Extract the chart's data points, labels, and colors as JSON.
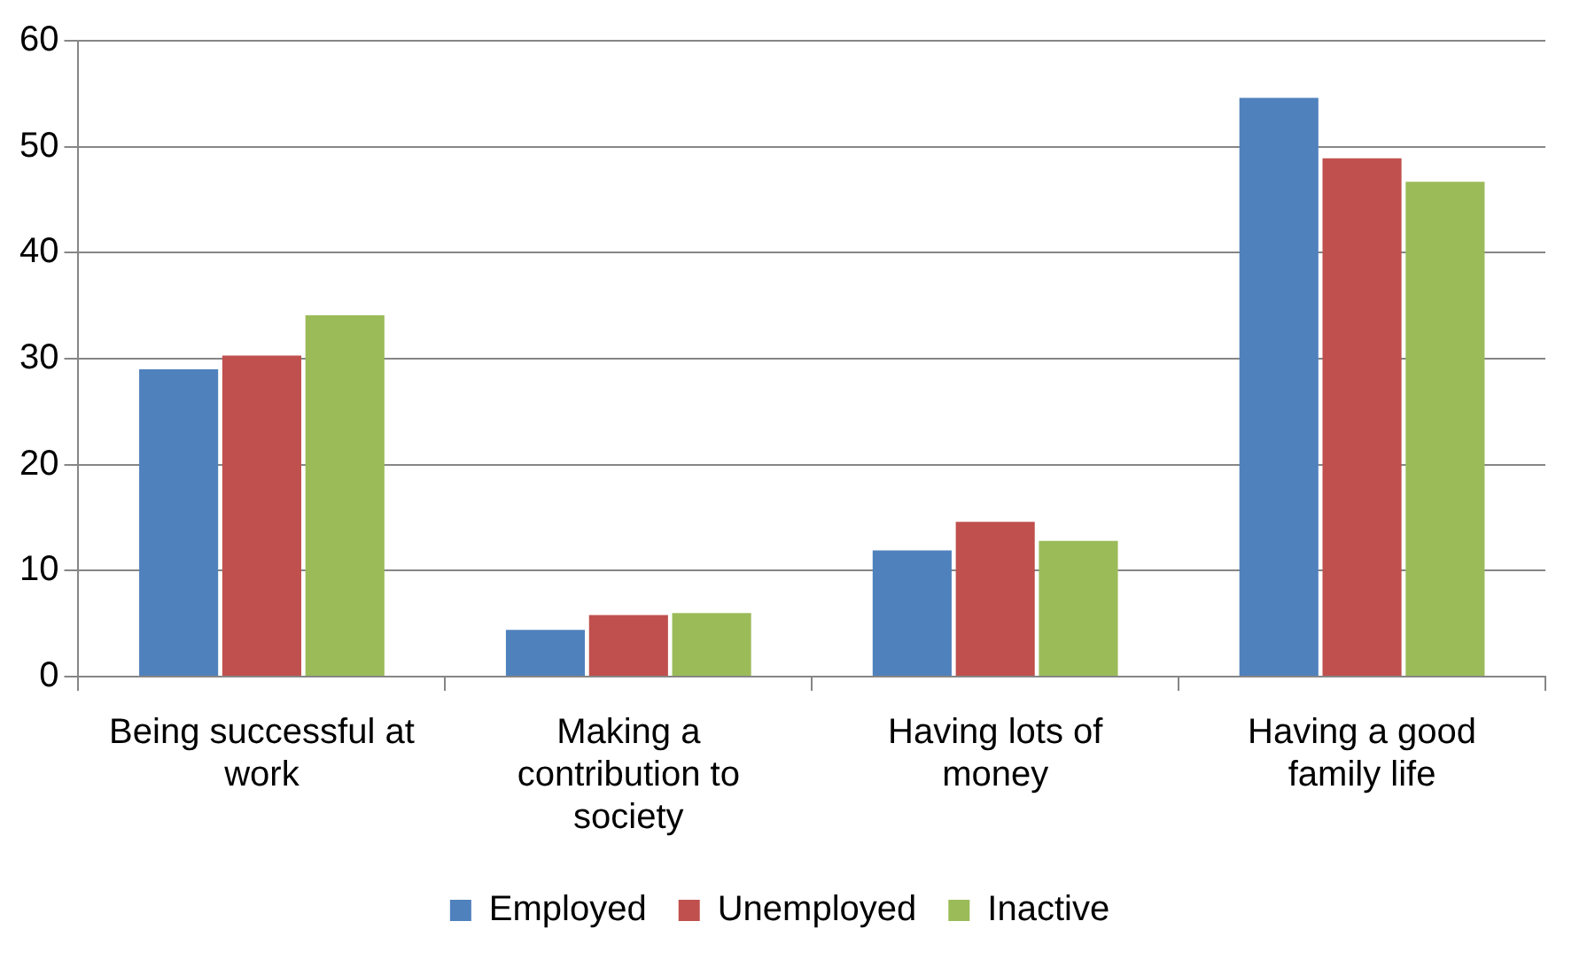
{
  "chart_data": {
    "type": "bar",
    "categories": [
      "Being successful at work",
      "Making a contribution to society",
      "Having lots of money",
      "Having a good family life"
    ],
    "series": [
      {
        "name": "Employed",
        "color": "#4f81bd",
        "values": [
          29.0,
          4.4,
          11.9,
          54.6
        ]
      },
      {
        "name": "Unemployed",
        "color": "#c0504d",
        "values": [
          30.3,
          5.8,
          14.6,
          48.9
        ]
      },
      {
        "name": "Inactive",
        "color": "#9bbb59",
        "values": [
          34.1,
          6.0,
          12.8,
          46.7
        ]
      }
    ],
    "ylim": [
      0,
      60
    ],
    "yticks": [
      0,
      10,
      20,
      30,
      40,
      50,
      60
    ],
    "grid": "y",
    "legend": "bottom"
  }
}
